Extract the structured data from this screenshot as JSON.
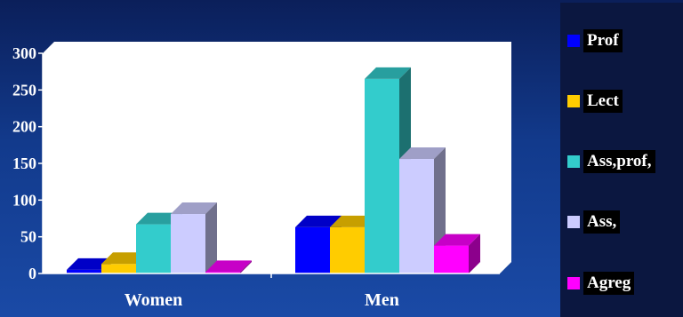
{
  "chart_data": {
    "type": "bar",
    "categories": [
      "Women",
      "Men"
    ],
    "series": [
      {
        "name": "Prof",
        "color": "#0000ff",
        "values": [
          5,
          63
        ]
      },
      {
        "name": "Lect",
        "color": "#ffcc00",
        "values": [
          13,
          63
        ]
      },
      {
        "name": "Ass,prof,",
        "color": "#33cccc",
        "values": [
          67,
          265
        ]
      },
      {
        "name": "Ass,",
        "color": "#ccccff",
        "values": [
          81,
          156
        ]
      },
      {
        "name": "Agreg",
        "color": "#ff00ff",
        "values": [
          2,
          38
        ]
      }
    ],
    "yticks": [
      "0",
      "50",
      "100",
      "150",
      "200",
      "250",
      "300"
    ],
    "ylim": [
      0,
      300
    ],
    "legend_position": "right",
    "grid": false,
    "style": "3d"
  }
}
